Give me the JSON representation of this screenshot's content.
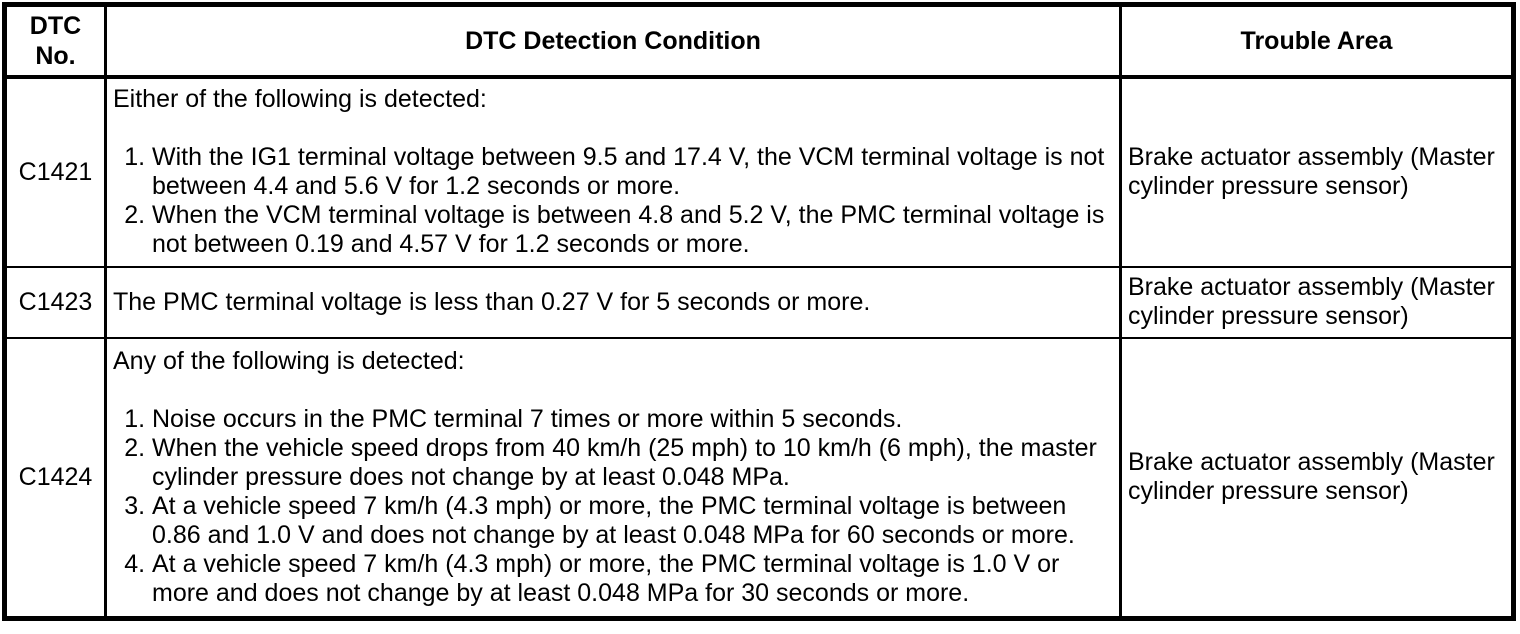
{
  "colors": {
    "background": "#ffffff",
    "border": "#000000",
    "text": "#000000"
  },
  "table": {
    "headers": {
      "dtc_no": "DTC\nNo.",
      "detection_condition": "DTC Detection Condition",
      "trouble_area": "Trouble Area"
    },
    "rows": [
      {
        "dtc": "C1421",
        "intro": "Either of the following is detected:",
        "items": [
          "With the IG1 terminal voltage between 9.5 and 17.4 V, the VCM terminal voltage is not\nbetween 4.4 and 5.6 V for 1.2 seconds or more.",
          "When the VCM terminal voltage is between 4.8 and 5.2 V, the PMC terminal voltage is\nnot between 0.19 and 4.57 V for 1.2 seconds or more."
        ],
        "trouble_area": "Brake actuator assembly (Master\ncylinder pressure sensor)"
      },
      {
        "dtc": "C1423",
        "intro": "The PMC terminal voltage is less than 0.27 V for 5 seconds or more.",
        "items": [],
        "trouble_area": "Brake actuator assembly (Master\ncylinder pressure sensor)"
      },
      {
        "dtc": "C1424",
        "intro": "Any of the following is detected:",
        "items": [
          "Noise occurs in the PMC terminal 7 times or more within 5 seconds.",
          "When the vehicle speed drops from 40 km/h (25 mph) to 10 km/h (6 mph), the master\ncylinder pressure does not change by at least 0.048 MPa.",
          "At a vehicle speed 7 km/h (4.3 mph) or more, the PMC terminal voltage is between\n0.86 and 1.0 V and does not change by at least 0.048 MPa for 60 seconds or more.",
          "At a vehicle speed 7 km/h (4.3 mph) or more, the PMC terminal voltage is 1.0 V or\nmore and does not change by at least 0.048 MPa for 30 seconds or more."
        ],
        "trouble_area": "Brake actuator assembly (Master\ncylinder pressure sensor)"
      }
    ]
  }
}
